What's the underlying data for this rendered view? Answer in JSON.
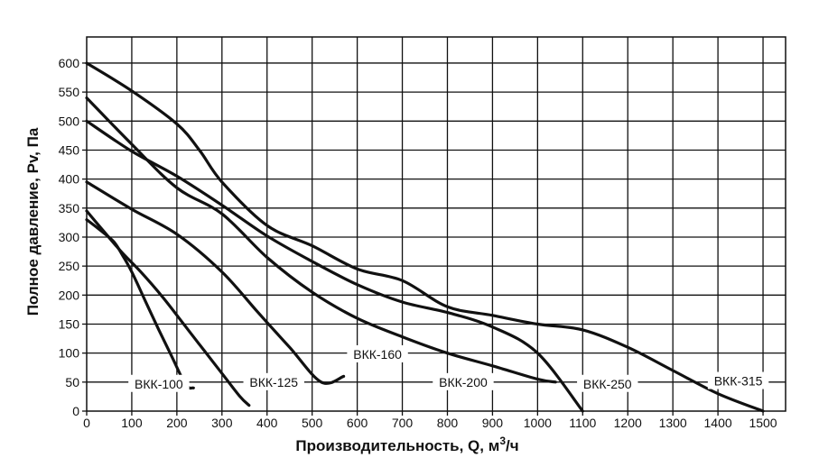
{
  "chart_data": {
    "type": "line",
    "xlabel": "Производительность, Q, м",
    "xlabel_sup": "3",
    "xlabel_suffix": "/ч",
    "ylabel": "Полное давление, Pv, Па",
    "xlim": [
      0,
      1550
    ],
    "ylim": [
      0,
      645
    ],
    "xticks": [
      0,
      100,
      200,
      300,
      400,
      500,
      600,
      700,
      800,
      900,
      1000,
      1100,
      1200,
      1300,
      1400,
      1500
    ],
    "yticks": [
      0,
      50,
      100,
      150,
      200,
      250,
      300,
      350,
      400,
      450,
      500,
      550,
      600
    ],
    "grid": true,
    "series": [
      {
        "name": "ВКК-100",
        "x": [
          0,
          30,
          60,
          80,
          100,
          130,
          160,
          190,
          220,
          237
        ],
        "y": [
          330,
          312,
          292,
          268,
          240,
          190,
          140,
          92,
          45,
          40
        ]
      },
      {
        "name": "ВКК-125",
        "x": [
          0,
          40,
          80,
          120,
          170,
          220,
          260,
          300,
          340,
          360
        ],
        "y": [
          345,
          308,
          272,
          240,
          195,
          145,
          105,
          65,
          25,
          10
        ]
      },
      {
        "name": "ВКК-160",
        "x": [
          0,
          100,
          200,
          300,
          380,
          450,
          520,
          570
        ],
        "y": [
          395,
          348,
          305,
          240,
          170,
          110,
          50,
          60
        ]
      },
      {
        "name": "ВКК-200",
        "x": [
          0,
          100,
          200,
          300,
          400,
          500,
          600,
          700,
          800,
          900,
          1000,
          1040
        ],
        "y": [
          540,
          460,
          385,
          340,
          265,
          205,
          160,
          128,
          100,
          78,
          55,
          50
        ]
      },
      {
        "name": "ВКК-250",
        "x": [
          0,
          100,
          200,
          300,
          400,
          500,
          600,
          700,
          800,
          900,
          1000,
          1100
        ],
        "y": [
          500,
          448,
          405,
          355,
          302,
          258,
          218,
          188,
          170,
          145,
          100,
          0
        ]
      },
      {
        "name": "ВКК-315",
        "x": [
          0,
          100,
          200,
          250,
          300,
          400,
          500,
          600,
          700,
          800,
          900,
          1000,
          1100,
          1200,
          1300,
          1400,
          1500
        ],
        "y": [
          600,
          552,
          495,
          450,
          395,
          320,
          285,
          245,
          225,
          180,
          165,
          150,
          140,
          110,
          70,
          30,
          0
        ]
      }
    ],
    "series_labels": [
      {
        "text": "ВКК-100",
        "x": 160,
        "y": 47
      },
      {
        "text": "ВКК-125",
        "x": 415,
        "y": 50
      },
      {
        "text": "ВКК-160",
        "x": 645,
        "y": 98
      },
      {
        "text": "ВКК-200",
        "x": 835,
        "y": 50
      },
      {
        "text": "ВКК-250",
        "x": 1155,
        "y": 47
      },
      {
        "text": "ВКК-315",
        "x": 1445,
        "y": 52
      }
    ]
  }
}
